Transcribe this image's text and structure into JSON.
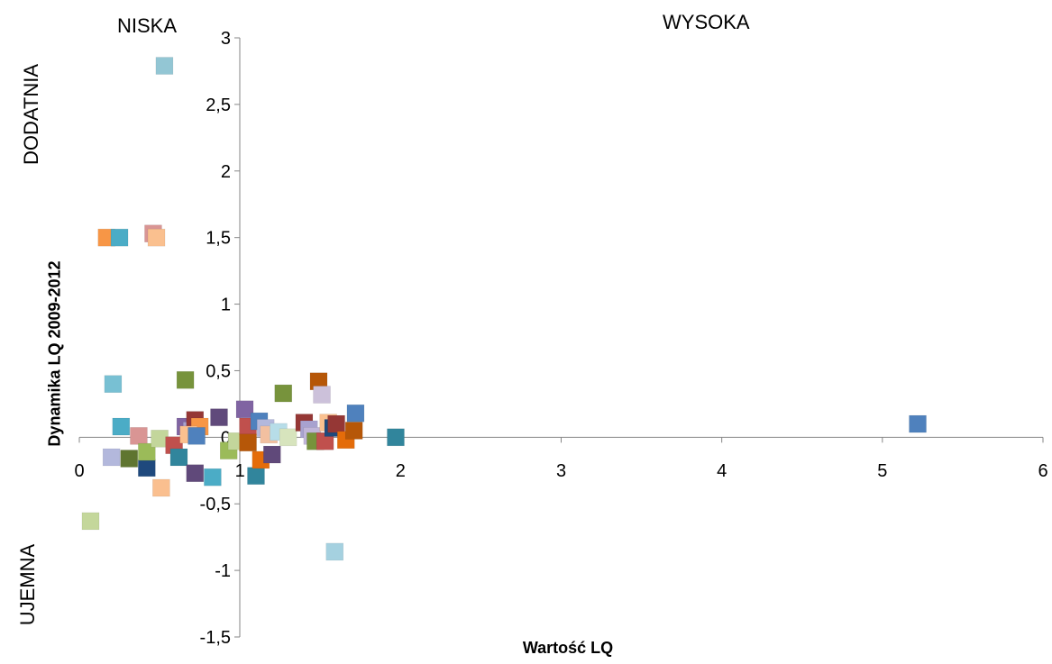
{
  "chart_data": {
    "type": "scatter",
    "xlabel": "Wartość LQ",
    "ylabel": "Dynamika LQ 2009-2012",
    "xlim": [
      0,
      6
    ],
    "ylim": [
      -1.5,
      3
    ],
    "x_ticks": [
      "0",
      "1",
      "2",
      "3",
      "4",
      "5",
      "6"
    ],
    "y_ticks": [
      "-1,5",
      "-1",
      "-0,5",
      "0",
      "0,5",
      "1",
      "1,5",
      "2",
      "2,5",
      "3"
    ],
    "quadrant_labels": {
      "top_left": "NISKA",
      "top_right": "WYSOKA",
      "left_upper": "DODATNIA",
      "left_lower": "UJEMNA"
    },
    "grid": false,
    "legend": "none",
    "points": [
      {
        "x": 0.53,
        "y": 2.79,
        "color": "#93c6d4"
      },
      {
        "x": 0.17,
        "y": 1.5,
        "color": "#f79646"
      },
      {
        "x": 0.25,
        "y": 1.5,
        "color": "#4bacc6"
      },
      {
        "x": 0.46,
        "y": 1.53,
        "color": "#d99594"
      },
      {
        "x": 0.48,
        "y": 1.5,
        "color": "#fac08f"
      },
      {
        "x": 0.21,
        "y": 0.4,
        "color": "#78c0d3"
      },
      {
        "x": 0.66,
        "y": 0.43,
        "color": "#77933c"
      },
      {
        "x": 0.26,
        "y": 0.08,
        "color": "#4bacc6"
      },
      {
        "x": 0.37,
        "y": 0.01,
        "color": "#d99594"
      },
      {
        "x": 0.2,
        "y": -0.15,
        "color": "#b3b8dc"
      },
      {
        "x": 0.31,
        "y": -0.16,
        "color": "#5f7530"
      },
      {
        "x": 0.42,
        "y": -0.23,
        "color": "#1f497d"
      },
      {
        "x": 0.42,
        "y": -0.11,
        "color": "#9bbb59"
      },
      {
        "x": 0.5,
        "y": -0.01,
        "color": "#c3d69b"
      },
      {
        "x": 0.51,
        "y": -0.38,
        "color": "#fabf8f"
      },
      {
        "x": 0.07,
        "y": -0.63,
        "color": "#c4d79b"
      },
      {
        "x": 0.59,
        "y": -0.06,
        "color": "#c0504d"
      },
      {
        "x": 0.62,
        "y": -0.15,
        "color": "#31859c"
      },
      {
        "x": 0.66,
        "y": 0.08,
        "color": "#8064a2"
      },
      {
        "x": 0.7,
        "y": 0.05,
        "color": "#a8a2cf"
      },
      {
        "x": 0.72,
        "y": 0.13,
        "color": "#953735"
      },
      {
        "x": 0.75,
        "y": 0.08,
        "color": "#f79646"
      },
      {
        "x": 0.68,
        "y": 0.02,
        "color": "#fac08f"
      },
      {
        "x": 0.73,
        "y": 0.01,
        "color": "#4f81bd"
      },
      {
        "x": 0.72,
        "y": -0.27,
        "color": "#60497a"
      },
      {
        "x": 0.83,
        "y": -0.3,
        "color": "#4bacc6"
      },
      {
        "x": 0.87,
        "y": 0.15,
        "color": "#604a7b"
      },
      {
        "x": 0.93,
        "y": -0.1,
        "color": "#9bbb59"
      },
      {
        "x": 0.98,
        "y": -0.03,
        "color": "#c3d69b"
      },
      {
        "x": 1.03,
        "y": 0.21,
        "color": "#8064a2"
      },
      {
        "x": 1.05,
        "y": 0.08,
        "color": "#c0504d"
      },
      {
        "x": 1.05,
        "y": -0.04,
        "color": "#b65708"
      },
      {
        "x": 1.1,
        "y": -0.29,
        "color": "#31859c"
      },
      {
        "x": 1.12,
        "y": 0.12,
        "color": "#4f81bd"
      },
      {
        "x": 1.13,
        "y": -0.17,
        "color": "#e46c0a"
      },
      {
        "x": 1.16,
        "y": 0.07,
        "color": "#b3b8dc"
      },
      {
        "x": 1.18,
        "y": 0.02,
        "color": "#f2c0a0"
      },
      {
        "x": 1.2,
        "y": -0.13,
        "color": "#60497a"
      },
      {
        "x": 1.24,
        "y": 0.04,
        "color": "#b7dde8"
      },
      {
        "x": 1.27,
        "y": 0.33,
        "color": "#77933c"
      },
      {
        "x": 1.3,
        "y": 0.0,
        "color": "#d7e4bd"
      },
      {
        "x": 1.4,
        "y": 0.11,
        "color": "#953735"
      },
      {
        "x": 1.43,
        "y": 0.06,
        "color": "#a8a2cf"
      },
      {
        "x": 1.45,
        "y": 0.01,
        "color": "#c0b5d8"
      },
      {
        "x": 1.47,
        "y": -0.03,
        "color": "#77933c"
      },
      {
        "x": 1.49,
        "y": 0.42,
        "color": "#b65708"
      },
      {
        "x": 1.51,
        "y": 0.32,
        "color": "#ccc1da"
      },
      {
        "x": 1.53,
        "y": -0.03,
        "color": "#c0504d"
      },
      {
        "x": 1.55,
        "y": 0.11,
        "color": "#fac08f"
      },
      {
        "x": 1.58,
        "y": 0.07,
        "color": "#1f497d"
      },
      {
        "x": 1.59,
        "y": -0.86,
        "color": "#a5d1e0"
      },
      {
        "x": 1.6,
        "y": 0.1,
        "color": "#953735"
      },
      {
        "x": 1.66,
        "y": -0.02,
        "color": "#e46c0a"
      },
      {
        "x": 1.71,
        "y": 0.05,
        "color": "#b65708"
      },
      {
        "x": 1.72,
        "y": 0.18,
        "color": "#4f81bd"
      },
      {
        "x": 1.97,
        "y": 0.0,
        "color": "#31859c"
      },
      {
        "x": 5.22,
        "y": 0.1,
        "color": "#4f81bd"
      }
    ]
  }
}
